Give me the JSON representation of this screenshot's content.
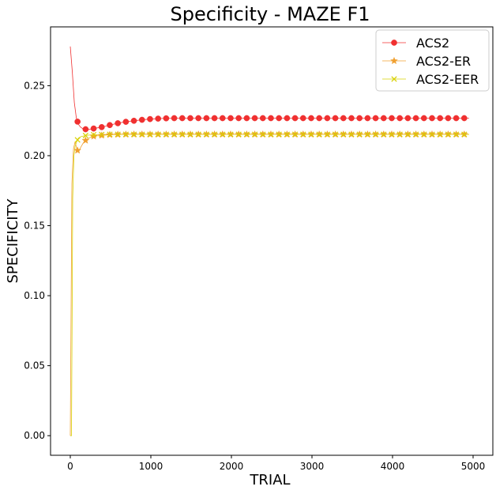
{
  "chart_data": {
    "type": "line",
    "title": "Specificity - MAZE F1",
    "xlabel": "TRIAL",
    "ylabel": "SPECIFICITY",
    "xlim": [
      -245,
      5245
    ],
    "ylim": [
      -0.014,
      0.292
    ],
    "xticks": [
      0,
      1000,
      2000,
      3000,
      4000,
      5000
    ],
    "yticks": [
      0.0,
      0.05,
      0.1,
      0.15,
      0.2,
      0.25
    ],
    "xtick_labels": [
      "0",
      "1000",
      "2000",
      "3000",
      "4000",
      "5000"
    ],
    "ytick_labels": [
      "0.00",
      "0.05",
      "0.10",
      "0.15",
      "0.20",
      "0.25"
    ],
    "grid": false,
    "legend_position": "top-right",
    "marker_every": 100,
    "series": [
      {
        "name": "ACS2",
        "color": "#f03030",
        "marker": "circle",
        "x": [
          0,
          25,
          50,
          75,
          100,
          125,
          150,
          175,
          200,
          250,
          300,
          400,
          500,
          600,
          700,
          800,
          900,
          1000,
          1100,
          1200,
          1300,
          1400,
          1500,
          2000,
          3000,
          4000,
          4950
        ],
        "y": [
          0.278,
          0.26,
          0.238,
          0.227,
          0.2225,
          0.2205,
          0.2195,
          0.219,
          0.2188,
          0.219,
          0.2195,
          0.2205,
          0.222,
          0.2233,
          0.2243,
          0.225,
          0.2257,
          0.2262,
          0.2265,
          0.2267,
          0.2268,
          0.2268,
          0.2268,
          0.2268,
          0.2268,
          0.2268,
          0.2268
        ]
      },
      {
        "name": "ACS2-ER",
        "color": "#f0a030",
        "marker": "star",
        "x": [
          0,
          20,
          40,
          60,
          80,
          100,
          130,
          160,
          200,
          250,
          300,
          400,
          500,
          700,
          1000,
          2000,
          3000,
          4000,
          4950
        ],
        "y": [
          0.0,
          0.18,
          0.205,
          0.21,
          0.205,
          0.2025,
          0.206,
          0.209,
          0.2115,
          0.213,
          0.214,
          0.2145,
          0.215,
          0.2152,
          0.2152,
          0.2152,
          0.2152,
          0.2152,
          0.2152
        ]
      },
      {
        "name": "ACS2-EER",
        "color": "#d8d000",
        "marker": "x",
        "x": [
          0,
          15,
          30,
          45,
          60,
          80,
          100,
          130,
          160,
          200,
          250,
          300,
          400,
          500,
          700,
          1000,
          2000,
          3000,
          4000,
          4950
        ],
        "y": [
          0.0,
          0.0,
          0.17,
          0.2,
          0.207,
          0.21,
          0.2125,
          0.2135,
          0.214,
          0.2145,
          0.2148,
          0.215,
          0.2151,
          0.2152,
          0.2152,
          0.2152,
          0.2152,
          0.2152,
          0.2152,
          0.2152
        ]
      }
    ]
  }
}
